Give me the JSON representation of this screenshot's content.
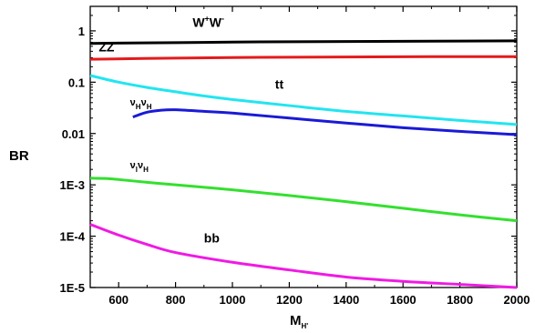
{
  "chart_data": {
    "type": "line",
    "title": "",
    "xlabel": "M",
    "xlabel_sub": "H'",
    "ylabel": "BR",
    "xlim": [
      500,
      2000
    ],
    "ylim": [
      1e-05,
      3
    ],
    "yscale": "log",
    "grid": false,
    "x_ticks": [
      600,
      800,
      1000,
      1200,
      1400,
      1600,
      1800,
      2000
    ],
    "x_tick_labels": [
      "600",
      "800",
      "1000",
      "1200",
      "1400",
      "1600",
      "1800",
      "2000"
    ],
    "y_ticks": [
      1e-05,
      0.0001,
      0.001,
      0.01,
      0.1,
      1
    ],
    "y_tick_labels": [
      "1E-5",
      "1E-4",
      "1E-3",
      "0.01",
      "0.1",
      "1"
    ],
    "series": [
      {
        "name": "W+W-",
        "color": "#000000",
        "x": [
          500,
          800,
          1100,
          1400,
          1700,
          2000
        ],
        "y": [
          0.57,
          0.59,
          0.61,
          0.62,
          0.63,
          0.64
        ]
      },
      {
        "name": "ZZ",
        "color": "#e41a1c",
        "x": [
          500,
          800,
          1100,
          1400,
          1700,
          2000
        ],
        "y": [
          0.28,
          0.295,
          0.305,
          0.31,
          0.315,
          0.315
        ]
      },
      {
        "name": "tt",
        "color": "#22e5f0",
        "x": [
          500,
          600,
          700,
          800,
          900,
          1000,
          1200,
          1400,
          1600,
          1800,
          2000
        ],
        "y": [
          0.135,
          0.1,
          0.079,
          0.065,
          0.054,
          0.046,
          0.035,
          0.027,
          0.022,
          0.018,
          0.015
        ]
      },
      {
        "name": "νHνH",
        "color": "#1a1ad6",
        "x": [
          650,
          700,
          750,
          800,
          900,
          1000,
          1200,
          1400,
          1600,
          1800,
          2000
        ],
        "y": [
          0.021,
          0.026,
          0.0285,
          0.029,
          0.027,
          0.025,
          0.02,
          0.016,
          0.013,
          0.011,
          0.0095
        ]
      },
      {
        "name": "νlνH",
        "color": "#33e02f",
        "x": [
          500,
          550,
          600,
          700,
          800,
          1000,
          1200,
          1400,
          1600,
          1800,
          2000
        ],
        "y": [
          0.00135,
          0.00133,
          0.00127,
          0.00112,
          0.001,
          0.0008,
          0.00062,
          0.00047,
          0.00035,
          0.00026,
          0.0002
        ]
      },
      {
        "name": "bb",
        "color": "#f01ae3",
        "x": [
          500,
          600,
          700,
          800,
          1000,
          1200,
          1400,
          1600,
          1800,
          2000
        ],
        "y": [
          0.00017,
          0.000105,
          6.9e-05,
          4.8e-05,
          3.1e-05,
          2.2e-05,
          1.6e-05,
          1.32e-05,
          1.15e-05,
          1e-05
        ]
      }
    ],
    "annotations": [
      {
        "id": "ww",
        "text": "W",
        "sup1": "+",
        "text2": "W",
        "sup2": "-",
        "x": 860,
        "y": 1.2
      },
      {
        "id": "zz",
        "text": "ZZ",
        "x": 530,
        "y": 0.4
      },
      {
        "id": "tt",
        "text": "tt",
        "x": 1150,
        "y": 0.075
      },
      {
        "id": "nuHnuH",
        "text": "ν",
        "sub1": "H",
        "text2": "ν",
        "sub2": "H",
        "x": 640,
        "y": 0.035
      },
      {
        "id": "nulnuH",
        "text": "ν",
        "sub1": "l",
        "text2": "ν",
        "sub2": "H",
        "x": 640,
        "y": 0.0021
      },
      {
        "id": "bb",
        "text": "bb",
        "x": 900,
        "y": 7.5e-05
      }
    ]
  }
}
